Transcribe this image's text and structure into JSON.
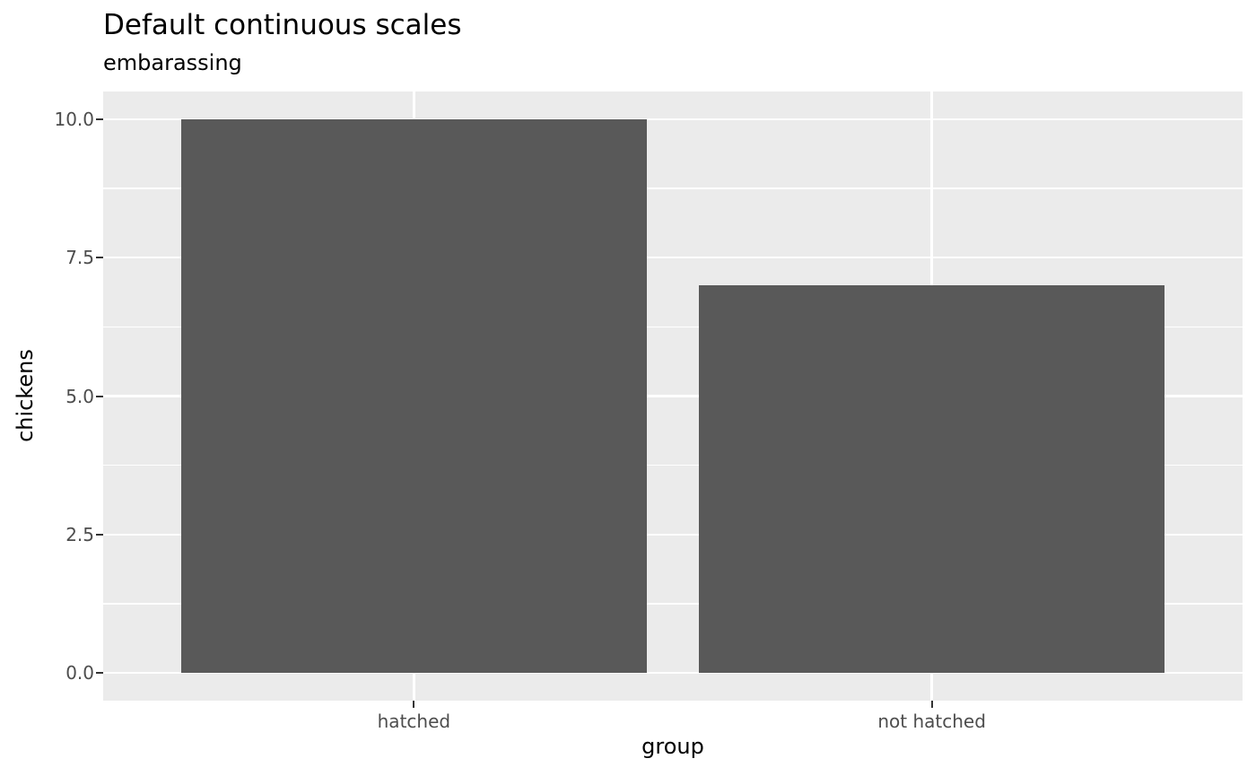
{
  "chart_data": {
    "type": "bar",
    "title": "Default continuous scales",
    "subtitle": "embarassing",
    "xlabel": "group",
    "ylabel": "chickens",
    "categories": [
      "hatched",
      "not hatched"
    ],
    "values": [
      10,
      7
    ],
    "ylim": [
      0,
      10
    ],
    "y_major_ticks": [
      0,
      2.5,
      5,
      7.5,
      10
    ],
    "y_tick_labels": [
      "0.0",
      "2.5",
      "5.0",
      "7.5",
      "10.0"
    ],
    "y_minor_ticks": [
      1.25,
      3.75,
      6.25,
      8.75
    ],
    "grid": "major-and-minor, white on gray panel",
    "legend": "none",
    "colors": {
      "bar_fill": "#595959",
      "panel_background": "#EBEBEB",
      "grid_major": "#FFFFFF",
      "grid_minor": "#FFFFFF",
      "axis_text": "#4D4D4D",
      "tick_mark": "#333333",
      "title_text": "#000000",
      "plot_background": "#FFFFFF"
    }
  }
}
